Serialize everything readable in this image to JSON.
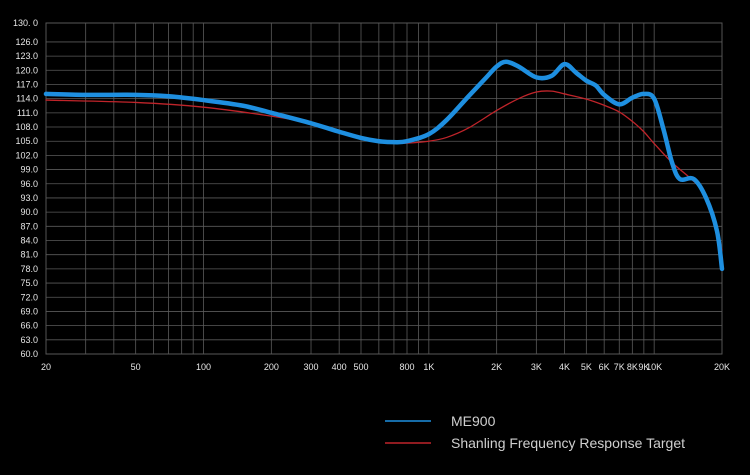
{
  "chart_data": {
    "type": "line",
    "title": "",
    "xlabel": "",
    "ylabel": "",
    "x_scale": "log",
    "xlim": [
      20,
      20000
    ],
    "ylim": [
      60,
      130
    ],
    "grid": true,
    "legend_position": "bottom-center",
    "y_ticks": [
      {
        "value": 60,
        "label": "60.0"
      },
      {
        "value": 63,
        "label": "63.0"
      },
      {
        "value": 66,
        "label": "66.0"
      },
      {
        "value": 69,
        "label": "69.0"
      },
      {
        "value": 72,
        "label": "72.0"
      },
      {
        "value": 75,
        "label": "75.0"
      },
      {
        "value": 78,
        "label": "78.0"
      },
      {
        "value": 81,
        "label": "81.0"
      },
      {
        "value": 84,
        "label": "84.0"
      },
      {
        "value": 87,
        "label": "87.0"
      },
      {
        "value": 90,
        "label": "90.0"
      },
      {
        "value": 93,
        "label": "93.0"
      },
      {
        "value": 96,
        "label": "96.0"
      },
      {
        "value": 99,
        "label": "99.0"
      },
      {
        "value": 102,
        "label": "102.0"
      },
      {
        "value": 105,
        "label": "105.0"
      },
      {
        "value": 108,
        "label": "108.0"
      },
      {
        "value": 111,
        "label": "111.0"
      },
      {
        "value": 114,
        "label": "114.0"
      },
      {
        "value": 117,
        "label": "117.0"
      },
      {
        "value": 120,
        "label": "120.0"
      },
      {
        "value": 123,
        "label": "123.0"
      },
      {
        "value": 126,
        "label": "126.0"
      },
      {
        "value": 130,
        "label": "130. 0"
      }
    ],
    "x_ticks": [
      {
        "value": 20,
        "label": "20"
      },
      {
        "value": 50,
        "label": "50"
      },
      {
        "value": 100,
        "label": "100"
      },
      {
        "value": 200,
        "label": "200"
      },
      {
        "value": 300,
        "label": "300"
      },
      {
        "value": 400,
        "label": "400"
      },
      {
        "value": 500,
        "label": "500"
      },
      {
        "value": 800,
        "label": "800"
      },
      {
        "value": 1000,
        "label": "1K"
      },
      {
        "value": 2000,
        "label": "2K"
      },
      {
        "value": 3000,
        "label": "3K"
      },
      {
        "value": 4000,
        "label": "4K"
      },
      {
        "value": 5000,
        "label": "5K"
      },
      {
        "value": 6000,
        "label": "6K"
      },
      {
        "value": 7000,
        "label": "7K"
      },
      {
        "value": 8000,
        "label": "8K"
      },
      {
        "value": 9000,
        "label": "9K"
      },
      {
        "value": 10000,
        "label": "10K"
      },
      {
        "value": 20000,
        "label": "20K"
      }
    ],
    "series": [
      {
        "name": "ME900",
        "color": "#1e8fe0",
        "x": [
          20,
          30,
          50,
          70,
          100,
          150,
          200,
          300,
          400,
          500,
          600,
          700,
          800,
          1000,
          1200,
          1500,
          1800,
          2000,
          2200,
          2500,
          3000,
          3500,
          4000,
          4500,
          5000,
          5500,
          6000,
          7000,
          8000,
          9000,
          10000,
          11000,
          12000,
          13000,
          15000,
          17000,
          19000,
          20000
        ],
        "y": [
          115,
          114.8,
          114.8,
          114.5,
          113.7,
          112.5,
          111.0,
          108.8,
          107.0,
          105.7,
          105.0,
          104.8,
          105.0,
          106.5,
          109.5,
          114.5,
          118.5,
          120.8,
          121.8,
          120.8,
          118.5,
          118.8,
          121.3,
          119.5,
          117.8,
          116.8,
          114.8,
          112.8,
          114.2,
          115.0,
          114.0,
          107.5,
          100.5,
          97.0,
          97.0,
          93.0,
          86.0,
          78.0
        ]
      },
      {
        "name": "Shanling Frequency Response Target",
        "color": "#c0242a",
        "x": [
          20,
          50,
          100,
          200,
          300,
          400,
          500,
          600,
          700,
          800,
          1000,
          1200,
          1500,
          2000,
          2500,
          3000,
          3500,
          4000,
          5000,
          6000,
          7000,
          8000,
          9000,
          10000,
          12000,
          15000,
          17000,
          20000
        ],
        "y": [
          113.7,
          113.2,
          112.2,
          110.3,
          108.8,
          107.2,
          105.9,
          105.0,
          104.6,
          104.6,
          105.0,
          105.8,
          107.8,
          111.5,
          114.0,
          115.4,
          115.6,
          115.0,
          113.9,
          112.6,
          111.2,
          109.2,
          107.0,
          104.5,
          100.5,
          96.5,
          93.5,
          82.0
        ]
      }
    ]
  }
}
